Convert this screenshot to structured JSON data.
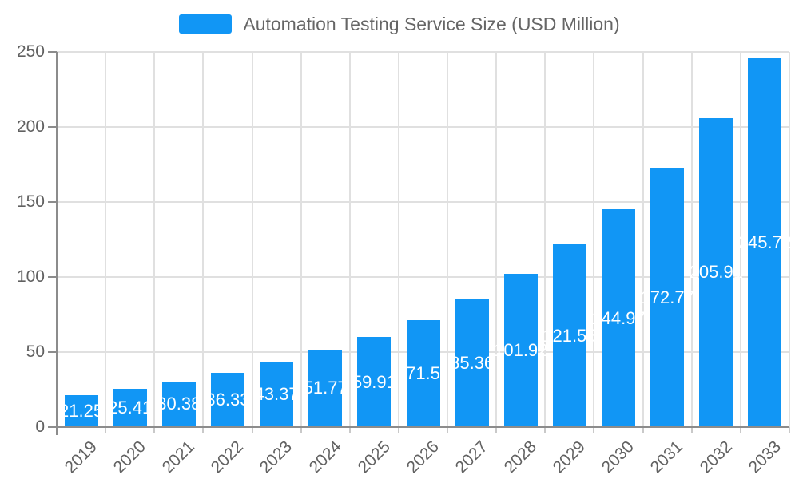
{
  "chart_data": {
    "type": "bar",
    "title": "Automation Testing Service Size (USD Million)",
    "categories": [
      "2019",
      "2020",
      "2021",
      "2022",
      "2023",
      "2024",
      "2025",
      "2026",
      "2027",
      "2028",
      "2029",
      "2030",
      "2031",
      "2032",
      "2033"
    ],
    "values": [
      21.25,
      25.41,
      30.38,
      36.33,
      43.37,
      51.77,
      59.91,
      71.5,
      85.36,
      101.92,
      121.55,
      144.97,
      172.77,
      205.91,
      245.72
    ],
    "bar_labels": [
      "21.25",
      "25.41",
      "30.38",
      "36.33",
      "43.37",
      "51.77",
      "59.91",
      "71.5",
      "85.36",
      "101.92",
      "121.55",
      "144.97",
      "172.77",
      "205.91",
      "245.72"
    ],
    "xlabel": "",
    "ylabel": "",
    "ylim": [
      0,
      250
    ],
    "yticks": [
      0,
      50,
      100,
      150,
      200,
      250
    ],
    "grid": true,
    "legend_position": "top",
    "bar_color": "#1196f5",
    "bar_label_color": "#ffffff",
    "grid_color": "#e0e0e0",
    "axis_color": "#8c8c8c",
    "tick_text_color": "#616161",
    "title_text_color": "#666666"
  }
}
